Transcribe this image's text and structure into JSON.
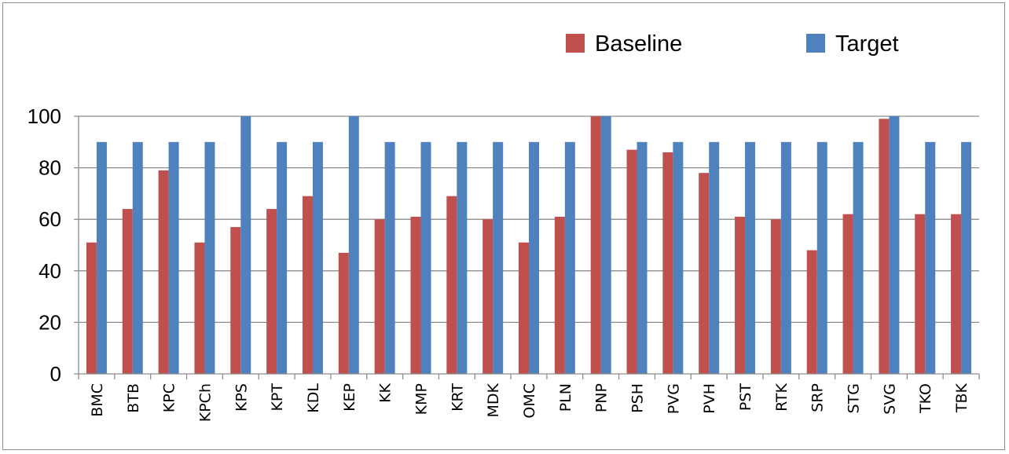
{
  "chart_data": {
    "type": "bar",
    "title": "",
    "xlabel": "",
    "ylabel": "",
    "ylim": [
      0,
      100
    ],
    "yticks": [
      0,
      20,
      40,
      60,
      80,
      100
    ],
    "grid": true,
    "legend_position": "top-right",
    "categories": [
      "BMC",
      "BTB",
      "KPC",
      "KPCh",
      "KPS",
      "KPT",
      "KDL",
      "KEP",
      "KK",
      "KMP",
      "KRT",
      "MDK",
      "OMC",
      "PLN",
      "PNP",
      "PSH",
      "PVG",
      "PVH",
      "PST",
      "RTK",
      "SRP",
      "STG",
      "SVG",
      "TKO",
      "TBK"
    ],
    "series": [
      {
        "name": "Baseline",
        "color": "#c0504d",
        "values": [
          51,
          64,
          79,
          51,
          57,
          64,
          69,
          47,
          60,
          61,
          69,
          60,
          51,
          61,
          100,
          87,
          86,
          78,
          61,
          60,
          48,
          62,
          99,
          62,
          62
        ]
      },
      {
        "name": "Target",
        "color": "#4f81bd",
        "values": [
          90,
          90,
          90,
          90,
          100,
          90,
          90,
          100,
          90,
          90,
          90,
          90,
          90,
          90,
          100,
          90,
          90,
          90,
          90,
          90,
          90,
          90,
          100,
          90,
          90
        ]
      }
    ]
  }
}
